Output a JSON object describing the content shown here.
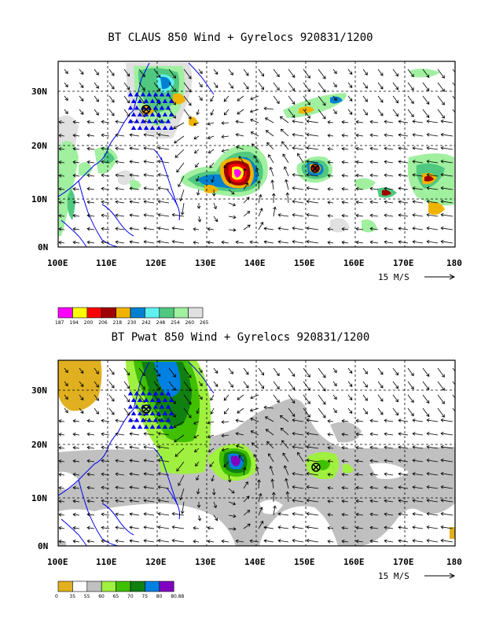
{
  "panels": [
    {
      "title": "BT CLAUS 850 Wind + Gyrelocs 920831/1200",
      "lon_ticks": [
        "100E",
        "110E",
        "120E",
        "130E",
        "140E",
        "150E",
        "160E",
        "170E",
        "180"
      ],
      "lat_ticks": [
        "0N",
        "10N",
        "20N",
        "30N"
      ],
      "vector_reference": "15 M/S",
      "colorbar": {
        "labels": [
          "187",
          "194",
          "200",
          "206",
          "218",
          "230",
          "242",
          "248",
          "254",
          "260",
          "265"
        ],
        "colors": [
          "#ff00ff",
          "#ffff00",
          "#ff0000",
          "#a00000",
          "#f0b400",
          "#0080d0",
          "#60f0f0",
          "#50c880",
          "#a0f0a0",
          "#e0e0e0"
        ]
      },
      "gyre_locations": [
        {
          "lon": 118,
          "lat": 27
        },
        {
          "lon": 152,
          "lat": 15.5
        }
      ]
    },
    {
      "title": "BT Pwat 850 Wind + Gyrelocs 920831/1200",
      "lon_ticks": [
        "100E",
        "110E",
        "120E",
        "130E",
        "140E",
        "150E",
        "160E",
        "170E",
        "180"
      ],
      "lat_ticks": [
        "0N",
        "10N",
        "20N",
        "30N"
      ],
      "vector_reference": "15 M/S",
      "colorbar": {
        "labels": [
          "0",
          "35",
          "55",
          "60",
          "65",
          "70",
          "75",
          "80",
          "80.88"
        ],
        "colors": [
          "#e0b020",
          "#ffffff",
          "#c0c0c0",
          "#a0f040",
          "#40c000",
          "#108010",
          "#0080e0",
          "#8000c0"
        ]
      },
      "gyre_locations": [
        {
          "lon": 118,
          "lat": 27
        },
        {
          "lon": 151.5,
          "lat": 14.5
        }
      ]
    }
  ]
}
